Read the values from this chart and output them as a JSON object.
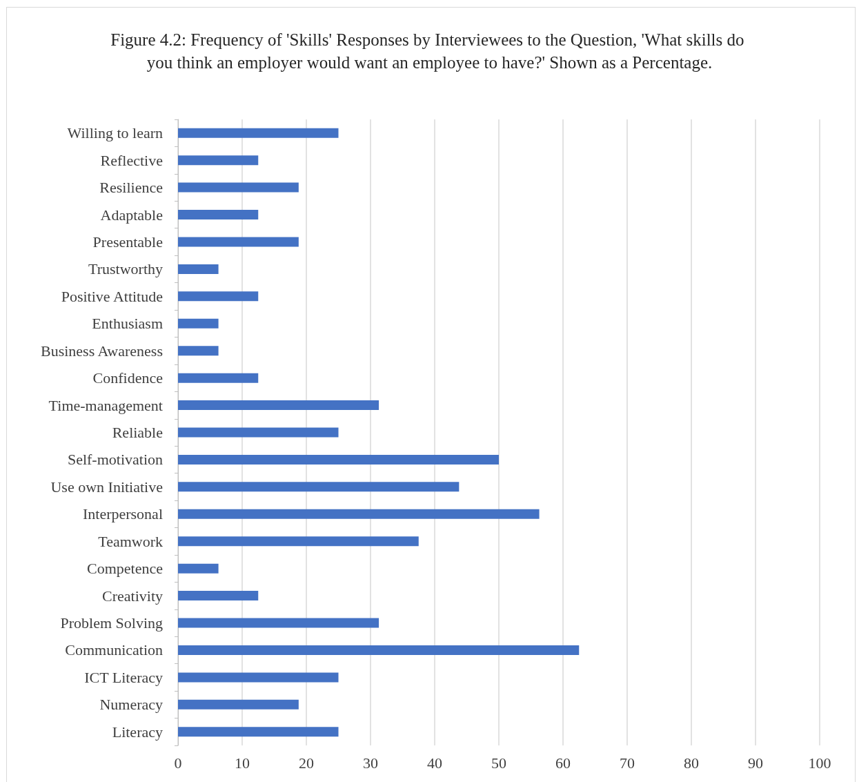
{
  "chart_data": {
    "type": "bar",
    "orientation": "horizontal",
    "title": "Figure 4.2: Frequency of 'Skills' Responses by Interviewees to the Question, 'What skills do you think an employer would want an employee to have?' Shown as a Percentage.",
    "categories": [
      "Willing to learn",
      "Reflective",
      "Resilience",
      "Adaptable",
      "Presentable",
      "Trustworthy",
      "Positive Attitude",
      "Enthusiasm",
      "Business Awareness",
      "Confidence",
      "Time-management",
      "Reliable",
      "Self-motivation",
      "Use own Initiative",
      "Interpersonal",
      "Teamwork",
      "Competence",
      "Creativity",
      "Problem Solving",
      "Communication",
      "ICT Literacy",
      "Numeracy",
      "Literacy"
    ],
    "values": [
      25,
      12.5,
      18.8,
      12.5,
      18.8,
      6.3,
      12.5,
      6.3,
      6.3,
      12.5,
      31.3,
      25,
      50,
      43.8,
      56.3,
      37.5,
      6.3,
      12.5,
      31.3,
      62.5,
      25,
      18.8,
      25
    ],
    "color": "#4472c4",
    "xlim": [
      0,
      100
    ],
    "xticks": [
      0,
      10,
      20,
      30,
      40,
      50,
      60,
      70,
      80,
      90,
      100
    ],
    "grid": "x"
  }
}
